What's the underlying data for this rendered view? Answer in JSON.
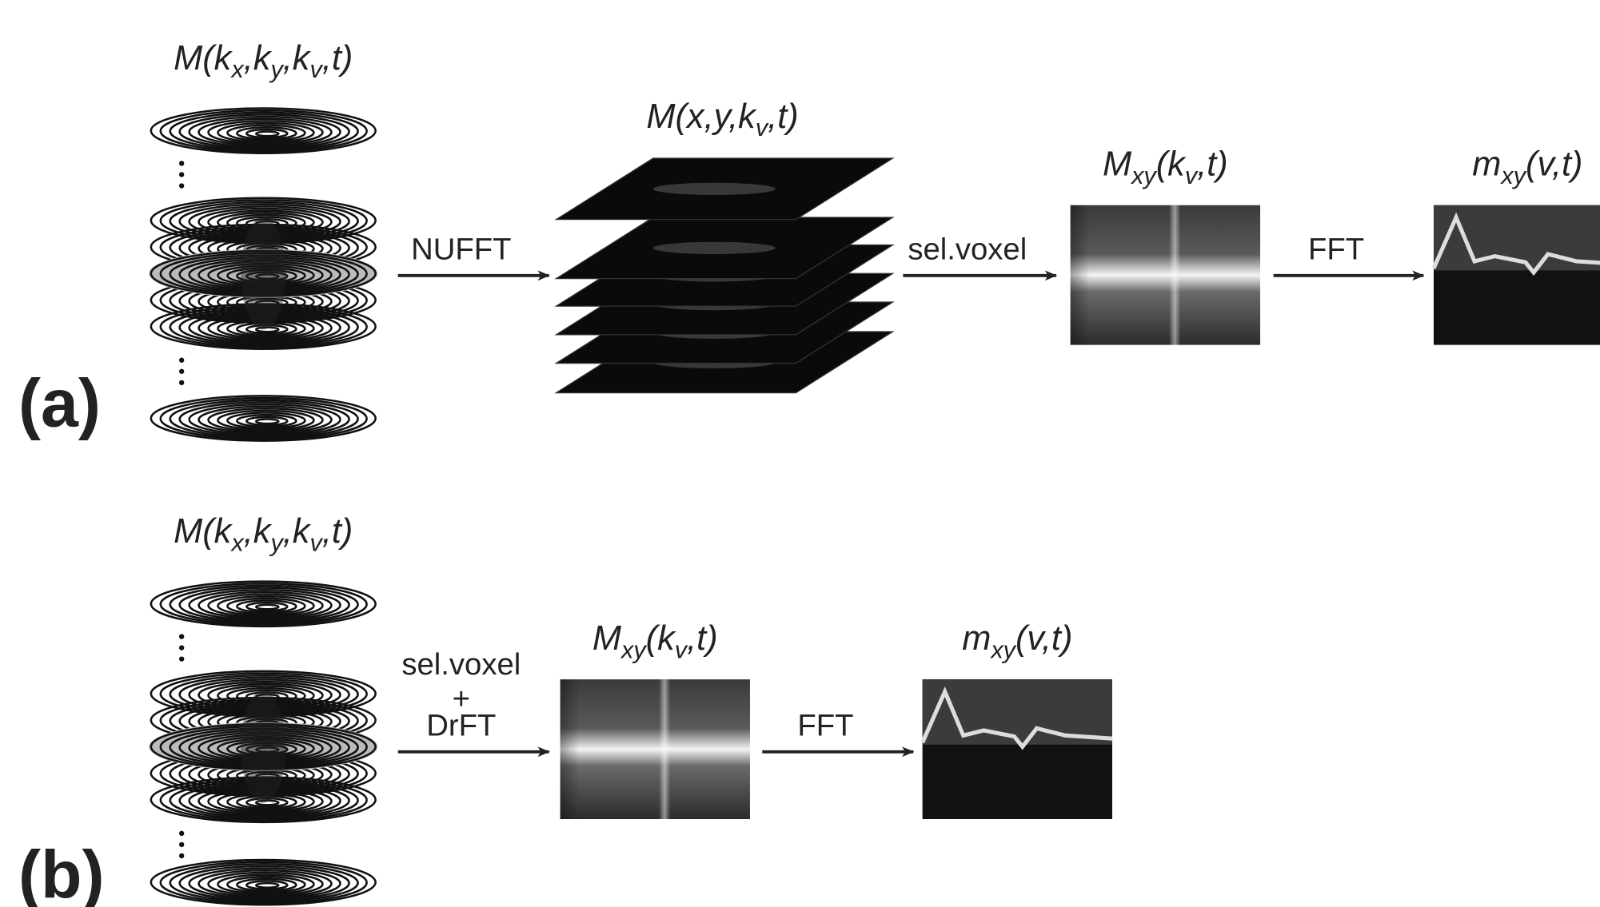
{
  "panels": [
    {
      "label": "(a)",
      "stages": [
        {
          "label": [
            "M(k",
            "x",
            ",k",
            "y",
            ",k",
            "v",
            ",t)"
          ]
        },
        {
          "label": [
            "M(x,y,k",
            "v",
            ",t)"
          ]
        },
        {
          "label": [
            "M",
            "xy",
            "(k",
            "v",
            ",t)"
          ]
        },
        {
          "label": [
            "m",
            "xy",
            "(v,t)"
          ]
        }
      ],
      "arrows": [
        [
          "NUFFT"
        ],
        [
          "sel.voxel"
        ],
        [
          "FFT"
        ]
      ]
    },
    {
      "label": "(b)",
      "stages": [
        {
          "label": [
            "M(k",
            "x",
            ",k",
            "y",
            ",k",
            "v",
            ",t)"
          ]
        },
        {
          "label": [
            "M",
            "xy",
            "(k",
            "v",
            ",t)"
          ]
        },
        {
          "label": [
            "m",
            "xy",
            "(v,t)"
          ]
        }
      ],
      "arrows": [
        [
          "sel.voxel",
          "+",
          "DrFT"
        ],
        [
          "FFT"
        ]
      ]
    }
  ]
}
